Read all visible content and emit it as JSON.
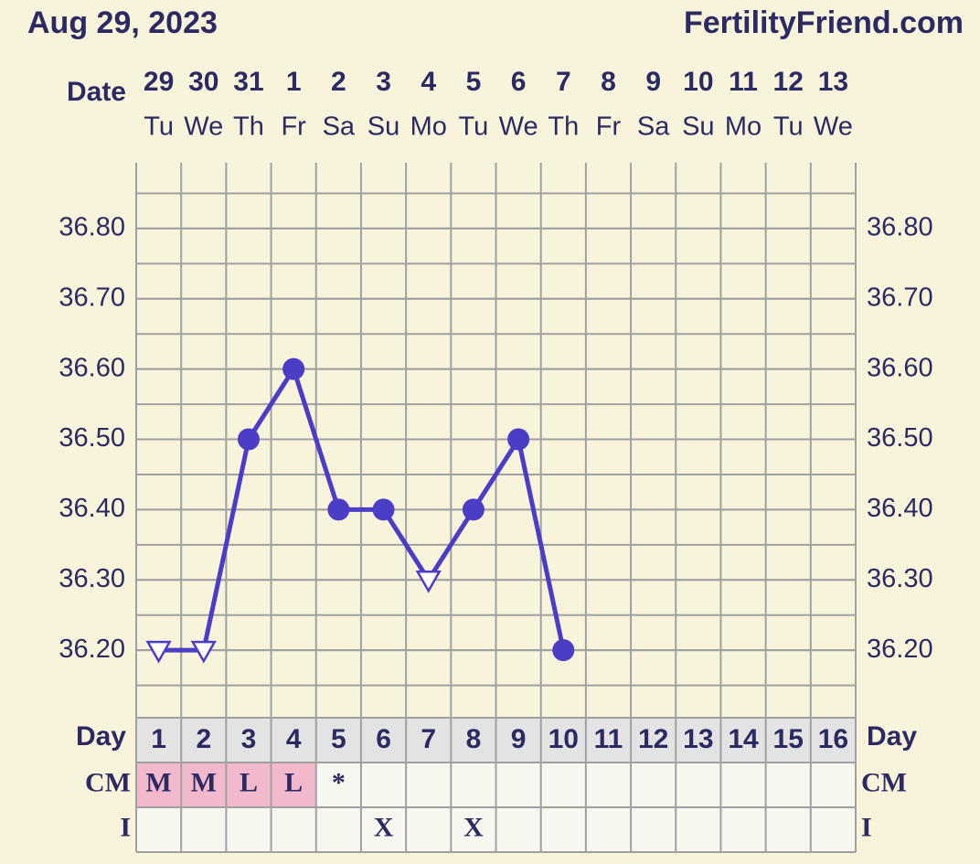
{
  "chart_data": {
    "type": "line",
    "title": "Aug 29, 2023",
    "site": "FertilityFriend.com",
    "date_label": "Date",
    "day_label": "Day",
    "dates": [
      "29",
      "30",
      "31",
      "1",
      "2",
      "3",
      "4",
      "5",
      "6",
      "7",
      "8",
      "9",
      "10",
      "11",
      "12",
      "13"
    ],
    "weekdays": [
      "Tu",
      "We",
      "Th",
      "Fr",
      "Sa",
      "Su",
      "Mo",
      "Tu",
      "We",
      "Th",
      "Fr",
      "Sa",
      "Su",
      "Mo",
      "Tu",
      "We"
    ],
    "days": [
      1,
      2,
      3,
      4,
      5,
      6,
      7,
      8,
      9,
      10,
      11,
      12,
      13,
      14,
      15,
      16
    ],
    "series": [
      {
        "name": "Temperature",
        "color": "#4b3dc6",
        "values": [
          36.2,
          36.2,
          36.5,
          36.6,
          36.4,
          36.4,
          36.3,
          36.4,
          36.5,
          36.2,
          null,
          null,
          null,
          null,
          null,
          null
        ],
        "markers": [
          "triangle",
          "triangle",
          "circle",
          "circle",
          "circle",
          "circle",
          "triangle",
          "circle",
          "circle",
          "circle",
          null,
          null,
          null,
          null,
          null,
          null
        ]
      }
    ],
    "ylim": [
      36.1,
      36.9
    ],
    "yticks": [
      {
        "value": 36.2,
        "label": "36.20"
      },
      {
        "value": 36.3,
        "label": "36.30"
      },
      {
        "value": 36.4,
        "label": "36.40"
      },
      {
        "value": 36.5,
        "label": "36.50"
      },
      {
        "value": 36.6,
        "label": "36.60"
      },
      {
        "value": 36.7,
        "label": "36.70"
      },
      {
        "value": 36.8,
        "label": "36.80"
      }
    ],
    "grid": true,
    "rows": [
      {
        "label": "CM",
        "values": [
          "M",
          "M",
          "L",
          "L",
          "*",
          null,
          null,
          null,
          null,
          null,
          null,
          null,
          null,
          null,
          null,
          null
        ],
        "cell_colors": [
          "#f2b8cb",
          "#f2b8cb",
          "#f2b8cb",
          "#f2b8cb",
          null,
          null,
          null,
          null,
          null,
          null,
          null,
          null,
          null,
          null,
          null,
          null
        ]
      },
      {
        "label": "I",
        "values": [
          null,
          null,
          null,
          null,
          null,
          "X",
          null,
          "X",
          null,
          null,
          null,
          null,
          null,
          null,
          null,
          null
        ],
        "cell_colors": [
          null,
          null,
          null,
          null,
          null,
          null,
          null,
          null,
          null,
          null,
          null,
          null,
          null,
          null,
          null,
          null
        ]
      }
    ]
  }
}
